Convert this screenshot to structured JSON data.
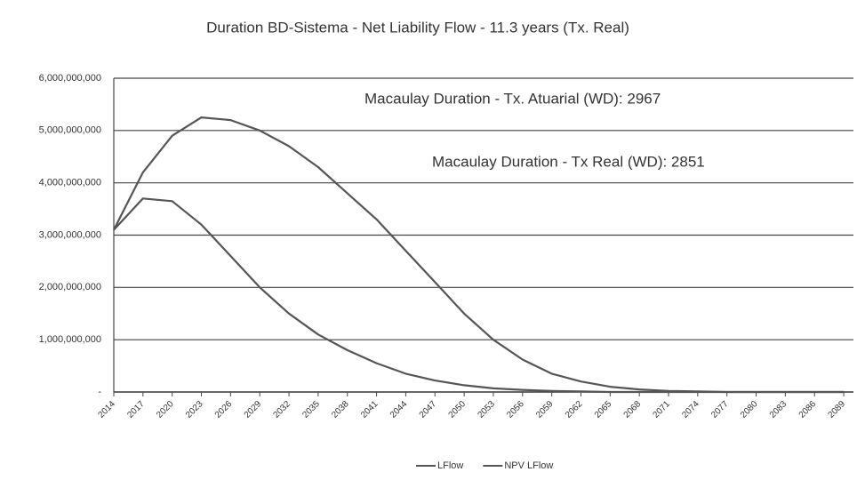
{
  "chart_data": {
    "type": "line",
    "title": "Duration BD-Sistema - Net Liability Flow - 11.3 years (Tx. Real)",
    "annotations": [
      "Macaulay Duration - Tx. Atuarial (WD):  2967",
      "Macaulay Duration - Tx Real (WD):  2851"
    ],
    "x": [
      2014,
      2017,
      2020,
      2023,
      2026,
      2029,
      2032,
      2035,
      2038,
      2041,
      2044,
      2047,
      2050,
      2053,
      2056,
      2059,
      2062,
      2065,
      2068,
      2071,
      2074,
      2077,
      2080,
      2083,
      2086,
      2089
    ],
    "series": [
      {
        "name": "LFlow",
        "color": "#555555",
        "values": [
          3100000000,
          4200000000,
          4900000000,
          5250000000,
          5200000000,
          5000000000,
          4700000000,
          4300000000,
          3800000000,
          3300000000,
          2700000000,
          2100000000,
          1500000000,
          1000000000,
          620000000,
          350000000,
          200000000,
          100000000,
          50000000,
          20000000,
          10000000,
          0,
          0,
          0,
          0,
          0
        ]
      },
      {
        "name": "NPV  LFlow",
        "color": "#555555",
        "values": [
          3100000000,
          3700000000,
          3650000000,
          3200000000,
          2600000000,
          2000000000,
          1500000000,
          1100000000,
          800000000,
          550000000,
          350000000,
          220000000,
          130000000,
          70000000,
          40000000,
          20000000,
          10000000,
          0,
          0,
          0,
          0,
          0,
          0,
          0,
          0,
          0
        ]
      }
    ],
    "xlim": [
      2014,
      2090
    ],
    "xticks": [
      2014,
      2017,
      2020,
      2023,
      2026,
      2029,
      2032,
      2035,
      2038,
      2041,
      2044,
      2047,
      2050,
      2053,
      2056,
      2059,
      2062,
      2065,
      2068,
      2071,
      2074,
      2077,
      2080,
      2083,
      2086,
      2089
    ],
    "ylim": [
      0,
      6000000000
    ],
    "yticks": [
      {
        "value": 0,
        "label": "-"
      },
      {
        "value": 1000000000,
        "label": "1,000,000,000"
      },
      {
        "value": 2000000000,
        "label": "2,000,000,000"
      },
      {
        "value": 3000000000,
        "label": "3,000,000,000"
      },
      {
        "value": 4000000000,
        "label": "4,000,000,000"
      },
      {
        "value": 5000000000,
        "label": "5,000,000,000"
      },
      {
        "value": 6000000000,
        "label": "6,000,000,000"
      }
    ],
    "grid": true,
    "legend": "bottom"
  }
}
